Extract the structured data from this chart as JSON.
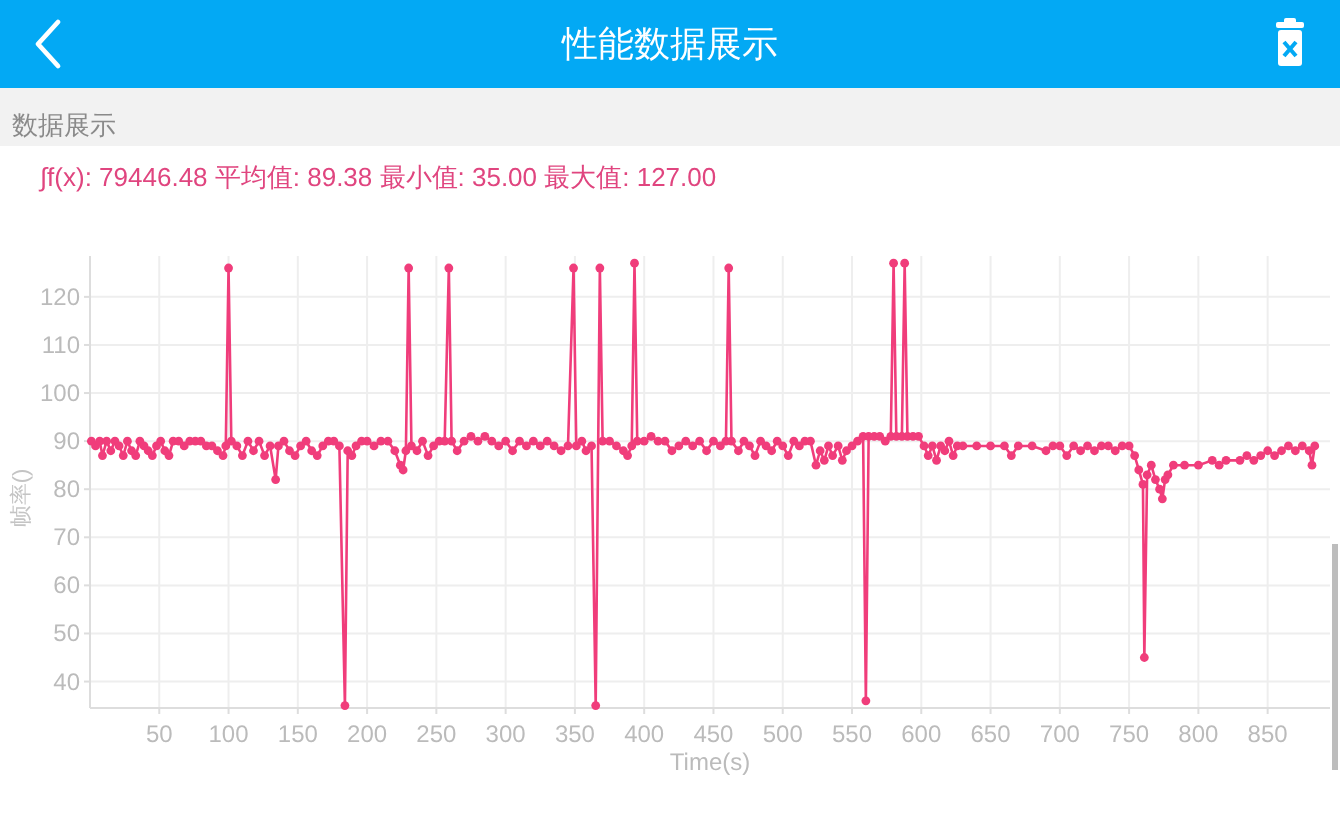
{
  "chart_data": {
    "type": "line",
    "title": "性能数据展示",
    "subtitle": "数据展示",
    "annotations": [
      "∫f(x): 79446.48 平均值: 89.38 最小值: 35.00 最大值: 127.00"
    ],
    "xlabel": "Time(s)",
    "ylabel": "帧率()",
    "color": "#f03d7b",
    "marker": "circle",
    "line_style": "solid",
    "grid": true,
    "xlim": [
      0,
      895
    ],
    "ylim": [
      34.5,
      128.5
    ],
    "xticks": [
      50,
      100,
      150,
      200,
      250,
      300,
      350,
      400,
      450,
      500,
      550,
      600,
      650,
      700,
      750,
      800,
      850
    ],
    "yticks": [
      40,
      50,
      60,
      70,
      80,
      90,
      100,
      110,
      120
    ],
    "x": [
      1,
      4,
      7,
      9,
      12,
      15,
      18,
      21,
      24,
      27,
      30,
      33,
      36,
      39,
      42,
      45,
      48,
      51,
      54,
      57,
      60,
      64,
      68,
      72,
      76,
      80,
      84,
      88,
      92,
      96,
      98,
      100,
      102,
      106,
      110,
      114,
      118,
      122,
      126,
      130,
      134,
      136,
      140,
      144,
      148,
      152,
      156,
      160,
      164,
      168,
      172,
      176,
      180,
      184,
      186,
      189,
      192,
      196,
      200,
      205,
      210,
      215,
      220,
      224,
      226,
      228,
      230,
      232,
      236,
      240,
      244,
      248,
      252,
      256,
      259,
      261,
      265,
      270,
      275,
      280,
      285,
      290,
      295,
      300,
      305,
      310,
      315,
      320,
      325,
      330,
      335,
      340,
      345,
      349,
      351,
      355,
      358,
      362,
      365,
      368,
      370,
      375,
      380,
      385,
      388,
      391,
      393,
      395,
      400,
      405,
      410,
      415,
      420,
      425,
      430,
      435,
      440,
      445,
      450,
      455,
      459,
      461,
      463,
      468,
      472,
      476,
      480,
      484,
      488,
      492,
      496,
      500,
      504,
      508,
      512,
      516,
      520,
      524,
      527,
      530,
      533,
      536,
      540,
      543,
      546,
      550,
      554,
      558,
      560,
      562,
      566,
      570,
      574,
      578,
      580,
      582,
      586,
      588,
      590,
      594,
      598,
      602,
      605,
      608,
      611,
      614,
      617,
      620,
      623,
      626,
      630,
      640,
      650,
      660,
      665,
      670,
      680,
      690,
      695,
      700,
      705,
      710,
      715,
      720,
      725,
      730,
      735,
      740,
      745,
      750,
      754,
      757,
      760,
      761,
      763,
      766,
      769,
      772,
      774,
      776,
      778,
      782,
      790,
      800,
      810,
      815,
      820,
      830,
      835,
      840,
      845,
      850,
      855,
      860,
      865,
      870,
      875,
      880,
      882,
      884
    ],
    "values": [
      90,
      89,
      90,
      87,
      90,
      88,
      90,
      89,
      87,
      90,
      88,
      87,
      90,
      89,
      88,
      87,
      89,
      90,
      88,
      87,
      90,
      90,
      89,
      90,
      90,
      90,
      89,
      89,
      88,
      87,
      89,
      126,
      90,
      89,
      87,
      90,
      88,
      90,
      87,
      89,
      82,
      89,
      90,
      88,
      87,
      89,
      90,
      88,
      87,
      89,
      90,
      90,
      89,
      35,
      88,
      87,
      89,
      90,
      90,
      89,
      90,
      90,
      88,
      85,
      84,
      88,
      126,
      89,
      88,
      90,
      87,
      89,
      90,
      90,
      126,
      90,
      88,
      90,
      91,
      90,
      91,
      90,
      89,
      90,
      88,
      90,
      89,
      90,
      89,
      90,
      89,
      88,
      89,
      126,
      89,
      90,
      88,
      89,
      35,
      126,
      90,
      90,
      89,
      88,
      87,
      89,
      127,
      90,
      90,
      91,
      90,
      90,
      88,
      89,
      90,
      89,
      90,
      88,
      90,
      89,
      90,
      126,
      90,
      88,
      90,
      89,
      87,
      90,
      89,
      88,
      90,
      89,
      87,
      90,
      89,
      90,
      90,
      85,
      88,
      86,
      89,
      87,
      89,
      86,
      88,
      89,
      90,
      91,
      36,
      91,
      91,
      91,
      90,
      91,
      127,
      91,
      91,
      127,
      91,
      91,
      91,
      89,
      87,
      89,
      86,
      89,
      88,
      90,
      87,
      89,
      89,
      89,
      89,
      89,
      87,
      89,
      89,
      88,
      89,
      89,
      87,
      89,
      88,
      89,
      88,
      89,
      89,
      88,
      89,
      89,
      87,
      84,
      81,
      45,
      83,
      85,
      82,
      80,
      78,
      82,
      83,
      85,
      85,
      85,
      86,
      85,
      86,
      86,
      87,
      86,
      87,
      88,
      87,
      88,
      89,
      88,
      89,
      88,
      85,
      89
    ]
  }
}
